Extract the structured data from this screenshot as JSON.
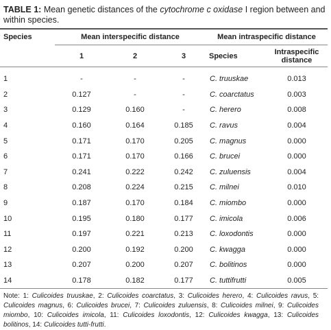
{
  "title": {
    "label": "TABLE 1:",
    "text_before": "Mean genetic distances of the ",
    "italic": "cytochrome c oxidase",
    "text_after": " I region between and within species."
  },
  "table": {
    "header": {
      "species": "Species",
      "inter": "Mean interspecific distance",
      "intra": "Mean intraspecific distance"
    },
    "subheader": [
      "1",
      "2",
      "3",
      "Species",
      "Intraspecific distance"
    ],
    "rows": [
      [
        "1",
        "-",
        "-",
        "-",
        "C. truuskae",
        "0.013"
      ],
      [
        "2",
        "0.127",
        "-",
        "-",
        "C. coarctatus",
        "0.003"
      ],
      [
        "3",
        "0.129",
        "0.160",
        "-",
        "C. herero",
        "0.008"
      ],
      [
        "4",
        "0.160",
        "0.164",
        "0.185",
        "C. ravus",
        "0.004"
      ],
      [
        "5",
        "0.171",
        "0.170",
        "0.205",
        "C. magnus",
        "0.000"
      ],
      [
        "6",
        "0.171",
        "0.170",
        "0.166",
        "C. brucei",
        "0.000"
      ],
      [
        "7",
        "0.241",
        "0.222",
        "0.242",
        "C. zuluensis",
        "0.004"
      ],
      [
        "8",
        "0.208",
        "0.224",
        "0.215",
        "C. milnei",
        "0.010"
      ],
      [
        "9",
        "0.187",
        "0.170",
        "0.184",
        "C. miombo",
        "0.000"
      ],
      [
        "10",
        "0.195",
        "0.180",
        "0.177",
        "C. imicola",
        "0.006"
      ],
      [
        "11",
        "0.197",
        "0.221",
        "0.213",
        "C. loxodontis",
        "0.000"
      ],
      [
        "12",
        "0.200",
        "0.192",
        "0.200",
        "C. kwagga",
        "0.000"
      ],
      [
        "13",
        "0.207",
        "0.200",
        "0.207",
        "C. bolitinos",
        "0.000"
      ],
      [
        "14",
        "0.178",
        "0.182",
        "0.177",
        "C. tuttifrutti",
        "0.005"
      ]
    ]
  },
  "note": {
    "label": "Note:",
    "items": [
      {
        "number": "1:",
        "name": "Culicoides truuskae",
        "sep": ","
      },
      {
        "number": "2:",
        "name": "Culicoides coarctatus",
        "sep": ","
      },
      {
        "number": "3:",
        "name": "Culicoides herero",
        "sep": ","
      },
      {
        "number": "4:",
        "name": "Culicoides ravus",
        "sep": ","
      },
      {
        "number": "5:",
        "name": "Culicoides magnus",
        "sep": ","
      },
      {
        "number": "6:",
        "name": "Culicoides brucei",
        "sep": ","
      },
      {
        "number": "7:",
        "name": "Culicoides zuluensis",
        "sep": ","
      },
      {
        "number": "8:",
        "name": "Culicoides milnei",
        "sep": ","
      },
      {
        "number": "9:",
        "name": "Culicoides miombo",
        "sep": ","
      },
      {
        "number": "10:",
        "name": "Culicoides imicola",
        "sep": ","
      },
      {
        "number": "11:",
        "name": "Culicoides loxodontis",
        "sep": ","
      },
      {
        "number": "12:",
        "name": "Culicoides kwagga",
        "sep": ","
      },
      {
        "number": "13:",
        "name": "Culicoides bolitinos",
        "sep": ","
      },
      {
        "number": "14:",
        "name": "Culicoides tutti-frutti",
        "sep": "."
      }
    ]
  }
}
